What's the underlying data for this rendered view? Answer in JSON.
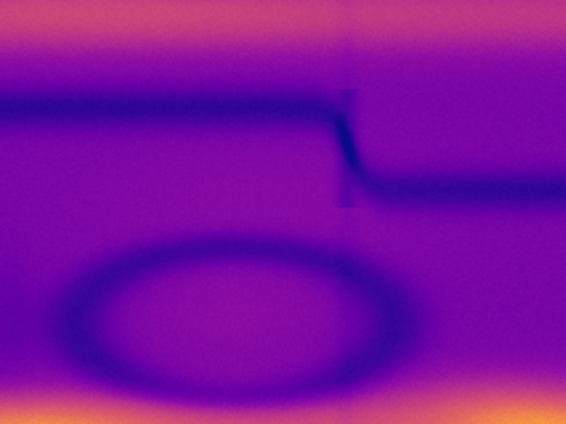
{
  "image": {
    "kind": "heatmap-image",
    "colormap": "plasma",
    "palette": {
      "darkest": "#2a0f8a",
      "dark": "#4b10a8",
      "mid": "#7c1aa8",
      "magenta": "#b3379a",
      "orange": "#e0686a",
      "bright": "#f9c53a",
      "yellow": "#ffe14a"
    }
  }
}
